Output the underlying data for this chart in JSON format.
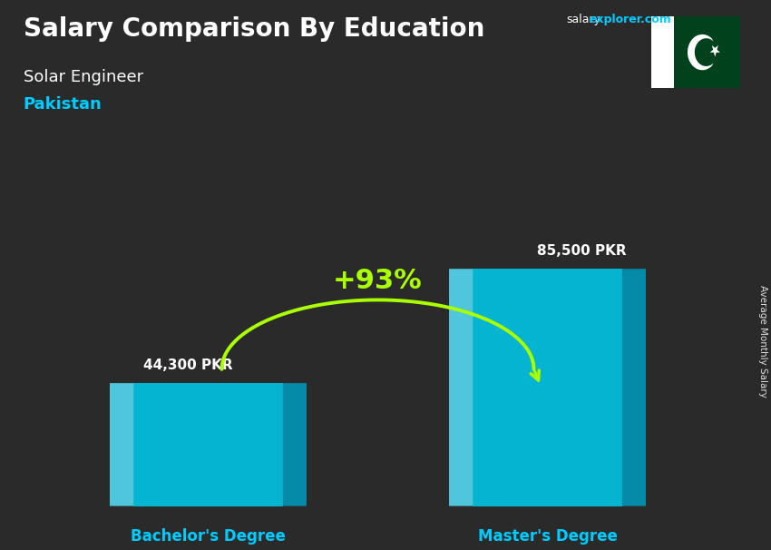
{
  "title_main": "Salary Comparison By Education",
  "subtitle_job": "Solar Engineer",
  "subtitle_country": "Pakistan",
  "categories": [
    "Bachelor's Degree",
    "Master's Degree"
  ],
  "values": [
    44300,
    85500
  ],
  "value_labels": [
    "44,300 PKR",
    "85,500 PKR"
  ],
  "pct_change": "+93%",
  "bar_front_color": "#00c8e8",
  "bar_left_color": "#55ddf5",
  "bar_right_color": "#0099bb",
  "bar_top_color": "#aaf0ff",
  "bg_color": "#2a2a2a",
  "text_color_white": "#ffffff",
  "text_color_cyan": "#00ccff",
  "text_color_green": "#aaff00",
  "ylabel": "Average Monthly Salary",
  "ylim": [
    0,
    115000
  ],
  "figsize": [
    8.5,
    6.06
  ],
  "dpi": 100,
  "flag_green": "#01411C",
  "salary_text": "salary",
  "explorer_text": "explorer.com"
}
